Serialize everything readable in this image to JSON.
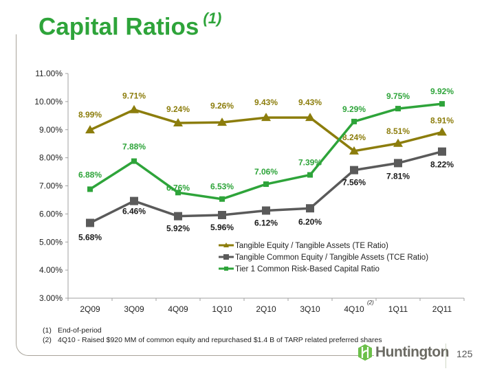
{
  "slide": {
    "title": "Capital Ratios",
    "title_superscript": "(1)",
    "page_number": "125",
    "logo_text": "Huntington"
  },
  "footnotes": [
    {
      "num": "(1)",
      "text": "End-of-period"
    },
    {
      "num": "(2)",
      "text": "4Q10  - Raised $920 MM of common equity and repurchased $1.4 B of TARP related preferred shares"
    }
  ],
  "chart_data": {
    "type": "line",
    "title": "",
    "xlabel": "",
    "ylabel": "",
    "categories": [
      "2Q09",
      "3Q09",
      "4Q09",
      "1Q10",
      "2Q10",
      "3Q10",
      "4Q10",
      "1Q11",
      "2Q11"
    ],
    "category_annotations": {
      "4Q10": "(2)"
    },
    "ylim": [
      3.0,
      11.0
    ],
    "yticks": [
      3.0,
      4.0,
      5.0,
      6.0,
      7.0,
      8.0,
      9.0,
      10.0,
      11.0
    ],
    "ytick_labels": [
      "3.00%",
      "4.00%",
      "5.00%",
      "6.00%",
      "7.00%",
      "8.00%",
      "9.00%",
      "10.00%",
      "11.00%"
    ],
    "grid": false,
    "legend_position": "lower-right",
    "series": [
      {
        "name": "Tangible Equity / Tangible Assets (TE Ratio)",
        "color": "#8c7d0c",
        "label_color": "#8c7d0c",
        "marker": "triangle",
        "values": [
          8.99,
          9.71,
          9.24,
          9.26,
          9.43,
          9.43,
          8.24,
          8.51,
          8.91
        ],
        "labels": [
          "8.99%",
          "9.71%",
          "9.24%",
          "9.26%",
          "9.43%",
          "9.43%",
          "8.24%",
          "8.51%",
          "8.91%"
        ]
      },
      {
        "name": "Tangible Common Equity / Tangible Assets (TCE Ratio)",
        "color": "#5a5a5a",
        "label_color": "#1a1a1a",
        "marker": "square",
        "values": [
          5.68,
          6.46,
          5.92,
          5.96,
          6.12,
          6.2,
          7.56,
          7.81,
          8.22
        ],
        "labels": [
          "5.68%",
          "6.46%",
          "5.92%",
          "5.96%",
          "6.12%",
          "6.20%",
          "7.56%",
          "7.81%",
          "8.22%"
        ]
      },
      {
        "name": "Tier 1 Common Risk-Based Capital Ratio",
        "color": "#2ea43a",
        "label_color": "#2ea43a",
        "marker": "small-square",
        "values": [
          6.88,
          7.88,
          6.76,
          6.53,
          7.06,
          7.39,
          9.29,
          9.75,
          9.92
        ],
        "labels": [
          "6.88%",
          "7.88%",
          "6.76%",
          "6.53%",
          "7.06%",
          "7.39%",
          "9.29%",
          "9.75%",
          "9.92%"
        ]
      }
    ]
  }
}
